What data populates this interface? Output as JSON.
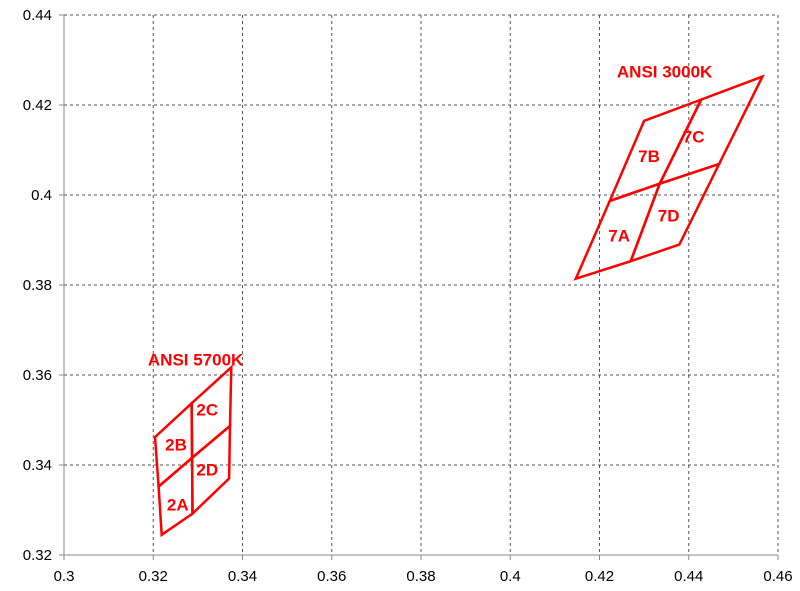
{
  "chart_data": {
    "type": "scatter",
    "title": "",
    "xlabel": "",
    "ylabel": "",
    "xlim": [
      0.3,
      0.46
    ],
    "ylim": [
      0.32,
      0.44
    ],
    "x_ticks": [
      0.3,
      0.32,
      0.34,
      0.36,
      0.38,
      0.4,
      0.42,
      0.44,
      0.46
    ],
    "y_ticks": [
      0.32,
      0.34,
      0.36,
      0.38,
      0.4,
      0.42,
      0.44
    ],
    "x_tick_labels": [
      "0.3",
      "0.32",
      "0.34",
      "0.36",
      "0.38",
      "0.4",
      "0.42",
      "0.44",
      "0.46"
    ],
    "y_tick_labels": [
      "0.32",
      "0.34",
      "0.36",
      "0.38",
      "0.4",
      "0.42",
      "0.44"
    ],
    "grid": true,
    "grid_style": "dashed",
    "line_color": "#ff0000",
    "groups": [
      {
        "title": "ANSI 5700K",
        "title_anchor": [
          0.3188,
          0.3635
        ],
        "regions": [
          {
            "name": "2A",
            "label_pos": [
              0.3255,
              0.3312
            ],
            "points": [
              [
                0.3219,
                0.3245
              ],
              [
                0.3288,
                0.3292
              ],
              [
                0.3287,
                0.3416
              ],
              [
                0.3212,
                0.3352
              ]
            ]
          },
          {
            "name": "2B",
            "label_pos": [
              0.3251,
              0.3446
            ],
            "points": [
              [
                0.3212,
                0.3352
              ],
              [
                0.3287,
                0.3416
              ],
              [
                0.3286,
                0.3537
              ],
              [
                0.3204,
                0.3462
              ]
            ]
          },
          {
            "name": "2C",
            "label_pos": [
              0.3321,
              0.3523
            ],
            "points": [
              [
                0.3286,
                0.3537
              ],
              [
                0.3287,
                0.3416
              ],
              [
                0.3372,
                0.3487
              ],
              [
                0.3375,
                0.3617
              ]
            ]
          },
          {
            "name": "2D",
            "label_pos": [
              0.3321,
              0.339
            ],
            "points": [
              [
                0.3287,
                0.3416
              ],
              [
                0.3288,
                0.3292
              ],
              [
                0.337,
                0.337
              ],
              [
                0.3372,
                0.3487
              ]
            ]
          }
        ]
      },
      {
        "title": "ANSI 3000K",
        "title_anchor": [
          0.4239,
          0.4275
        ],
        "regions": [
          {
            "name": "7A",
            "label_pos": [
              0.4244,
              0.391
            ],
            "points": [
              [
                0.4147,
                0.3814
              ],
              [
                0.427,
                0.3853
              ],
              [
                0.4335,
                0.4025
              ],
              [
                0.4223,
                0.3987
              ]
            ]
          },
          {
            "name": "7B",
            "label_pos": [
              0.4311,
              0.4087
            ],
            "points": [
              [
                0.4223,
                0.3987
              ],
              [
                0.4335,
                0.4025
              ],
              [
                0.4428,
                0.4212
              ],
              [
                0.43,
                0.4165
              ]
            ]
          },
          {
            "name": "7C",
            "label_pos": [
              0.4411,
              0.413
            ],
            "points": [
              [
                0.4335,
                0.4025
              ],
              [
                0.4468,
                0.4069
              ],
              [
                0.4565,
                0.4263
              ],
              [
                0.4428,
                0.4212
              ]
            ]
          },
          {
            "name": "7D",
            "label_pos": [
              0.4355,
              0.3955
            ],
            "points": [
              [
                0.427,
                0.3853
              ],
              [
                0.4379,
                0.389
              ],
              [
                0.4468,
                0.4069
              ],
              [
                0.4335,
                0.4025
              ]
            ]
          }
        ]
      }
    ]
  }
}
